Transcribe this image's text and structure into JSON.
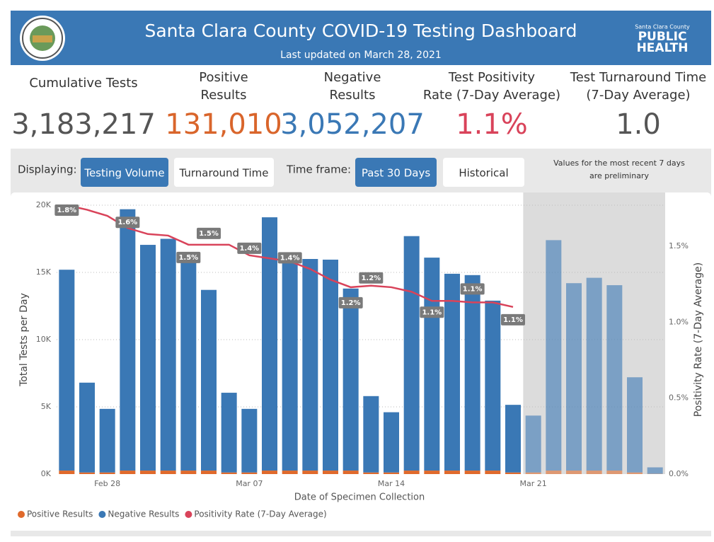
{
  "header": {
    "title": "Santa Clara County COVID-19 Testing Dashboard",
    "updated": "Last updated on March 28, 2021",
    "logo": {
      "small": "Santa Clara County",
      "line1": "PUBLIC",
      "line2": "HEALTH"
    }
  },
  "kpis": [
    {
      "label": [
        "Cumulative Tests"
      ],
      "value": "3,183,217",
      "color": "#555555"
    },
    {
      "label": [
        "Positive",
        "Results"
      ],
      "value": "131,010",
      "color": "#d9652b"
    },
    {
      "label": [
        "Negative",
        "Results"
      ],
      "value": "3,052,207",
      "color": "#3a78b5"
    },
    {
      "label": [
        "Test Positivity",
        "Rate (7-Day Average)"
      ],
      "value": "1.1%",
      "color": "#d9435a"
    },
    {
      "label": [
        "Test Turnaround Time",
        "(7-Day Average)"
      ],
      "value": "1.0",
      "color": "#555555"
    }
  ],
  "controls": {
    "displaying_label": "Displaying:",
    "display_options": [
      "Testing Volume",
      "Turnaround Time"
    ],
    "timeframe_label": "Time frame:",
    "timeframe_options": [
      "Past 30 Days",
      "Historical"
    ],
    "note": [
      "Values for the most recent 7 days",
      "are preliminary"
    ]
  },
  "chart_data": {
    "type": "bar",
    "x_label": "Date of Specimen Collection",
    "y_label": "Total Tests per Day",
    "y2_label": "Positivity Rate (7-Day Average)",
    "categories": [
      null,
      null,
      "Feb 28",
      null,
      null,
      null,
      null,
      null,
      null,
      "Mar 07",
      null,
      null,
      null,
      null,
      null,
      null,
      "Mar 14",
      null,
      null,
      null,
      null,
      null,
      null,
      "Mar 21",
      null,
      null,
      null,
      null,
      null,
      null
    ],
    "preliminary_days": 7,
    "grid": true,
    "series": [
      {
        "name": "Positive Results",
        "color": "#e06a2c",
        "values": [
          260,
          120,
          120,
          260,
          260,
          260,
          260,
          260,
          120,
          120,
          260,
          260,
          260,
          260,
          260,
          120,
          120,
          260,
          260,
          260,
          260,
          260,
          120,
          120,
          260,
          260,
          260,
          260,
          120,
          20
        ]
      },
      {
        "name": "Negative Results",
        "color": "#3a78b5",
        "values": [
          14940,
          6680,
          4730,
          19440,
          16790,
          17240,
          16040,
          13440,
          5930,
          4730,
          18840,
          15990,
          15740,
          15690,
          13540,
          5680,
          4480,
          17440,
          15840,
          14640,
          14540,
          12640,
          5030,
          4230,
          17140,
          13940,
          14340,
          13790,
          7080,
          480
        ]
      },
      {
        "name": "Positivity Rate (7-Day Average)",
        "color": "#d9435a",
        "axis": "y2",
        "values": [
          1.77,
          1.74,
          1.7,
          1.62,
          1.58,
          1.57,
          1.51,
          1.51,
          1.51,
          1.44,
          1.42,
          1.4,
          1.35,
          1.28,
          1.23,
          1.24,
          1.23,
          1.2,
          1.14,
          1.14,
          1.13,
          1.13,
          1.1,
          null,
          null,
          null,
          null,
          null,
          null,
          null
        ],
        "value_labels": [
          "1.8%",
          null,
          null,
          "1.6%",
          null,
          null,
          "1.5%",
          "1.5%",
          null,
          "1.4%",
          null,
          "1.4%",
          null,
          null,
          "1.2%",
          "1.2%",
          null,
          null,
          "1.1%",
          null,
          "1.1%",
          null,
          "1.1%",
          null,
          null,
          null,
          null,
          null,
          null,
          null
        ]
      }
    ],
    "ylim": [
      0,
      20000
    ],
    "yticks": [
      {
        "value": 0,
        "label": "0K"
      },
      {
        "value": 5000,
        "label": "5K"
      },
      {
        "value": 10000,
        "label": "10K"
      },
      {
        "value": 15000,
        "label": "15K"
      },
      {
        "value": 20000,
        "label": "20K"
      }
    ],
    "y2lim": [
      0,
      1.77
    ],
    "y2ticks": [
      {
        "value": 0,
        "label": "0.0%"
      },
      {
        "value": 0.5,
        "label": "0.5%"
      },
      {
        "value": 1,
        "label": "1.0%"
      },
      {
        "value": 1.5,
        "label": "1.5%"
      }
    ]
  }
}
